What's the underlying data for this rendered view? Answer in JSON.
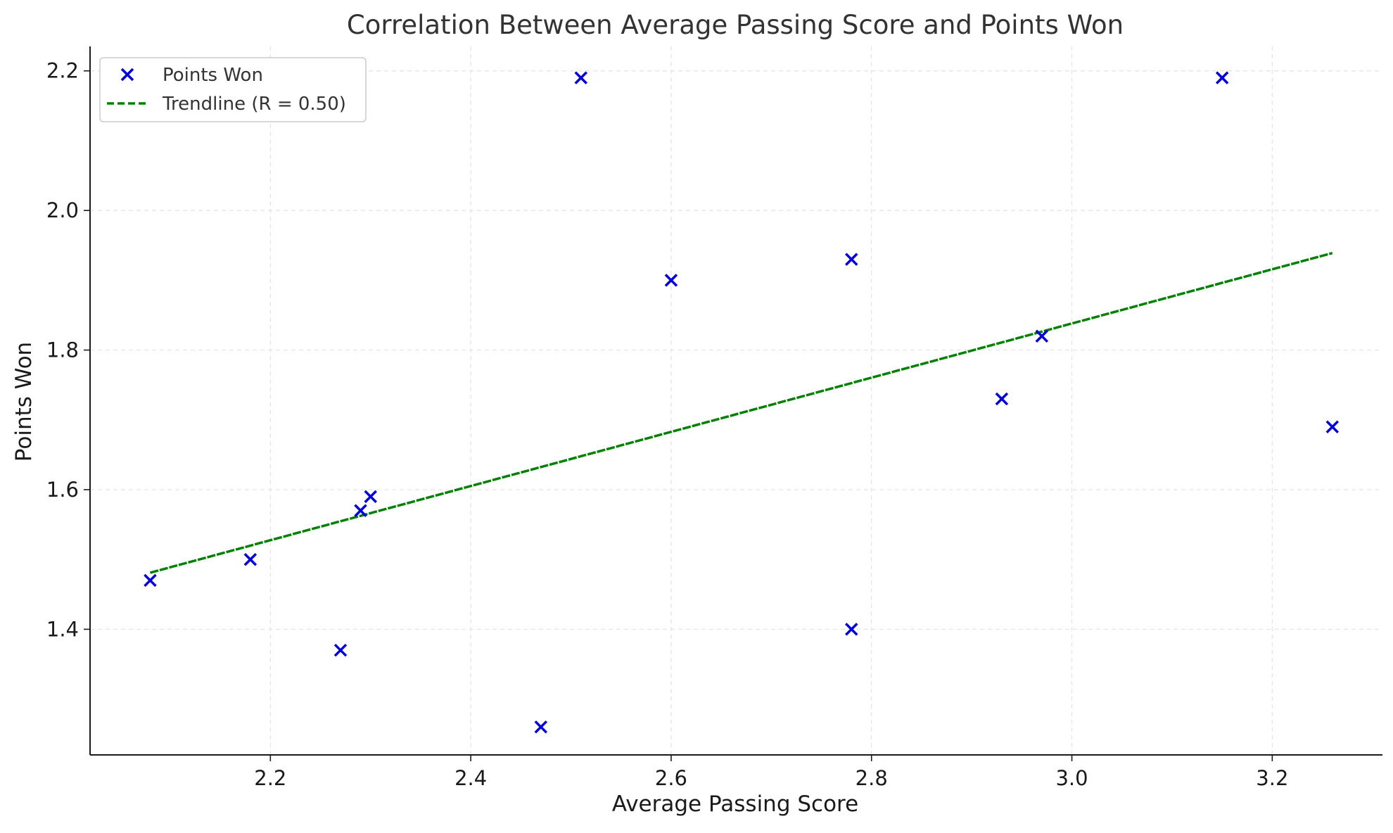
{
  "chart_data": {
    "type": "scatter",
    "title": "Correlation Between Average Passing Score and Points Won",
    "xlabel": "Average Passing Score",
    "ylabel": "Points Won",
    "xlim": [
      2.02,
      3.31
    ],
    "ylim": [
      1.22,
      2.235
    ],
    "xticks": [
      "2.2",
      "2.4",
      "2.6",
      "2.8",
      "3.0",
      "3.2"
    ],
    "yticks": [
      "1.4",
      "1.6",
      "1.8",
      "2.0",
      "2.2"
    ],
    "grid": true,
    "legend_position": "top-left",
    "series": [
      {
        "name": "Points Won",
        "type": "scatter",
        "marker": "x",
        "color": "#0000dd",
        "x": [
          2.08,
          2.18,
          2.27,
          2.29,
          2.3,
          2.47,
          2.51,
          2.6,
          2.78,
          2.78,
          2.93,
          2.97,
          3.15,
          3.26
        ],
        "y": [
          1.47,
          1.5,
          1.37,
          1.57,
          1.59,
          1.26,
          2.19,
          1.9,
          1.93,
          1.4,
          1.73,
          1.82,
          2.19,
          1.69
        ]
      },
      {
        "name": "Trendline (R = 0.50)",
        "type": "line",
        "style": "dashed",
        "color": "#008000",
        "x": [
          2.08,
          3.26
        ],
        "y": [
          1.481,
          1.939
        ]
      }
    ]
  }
}
